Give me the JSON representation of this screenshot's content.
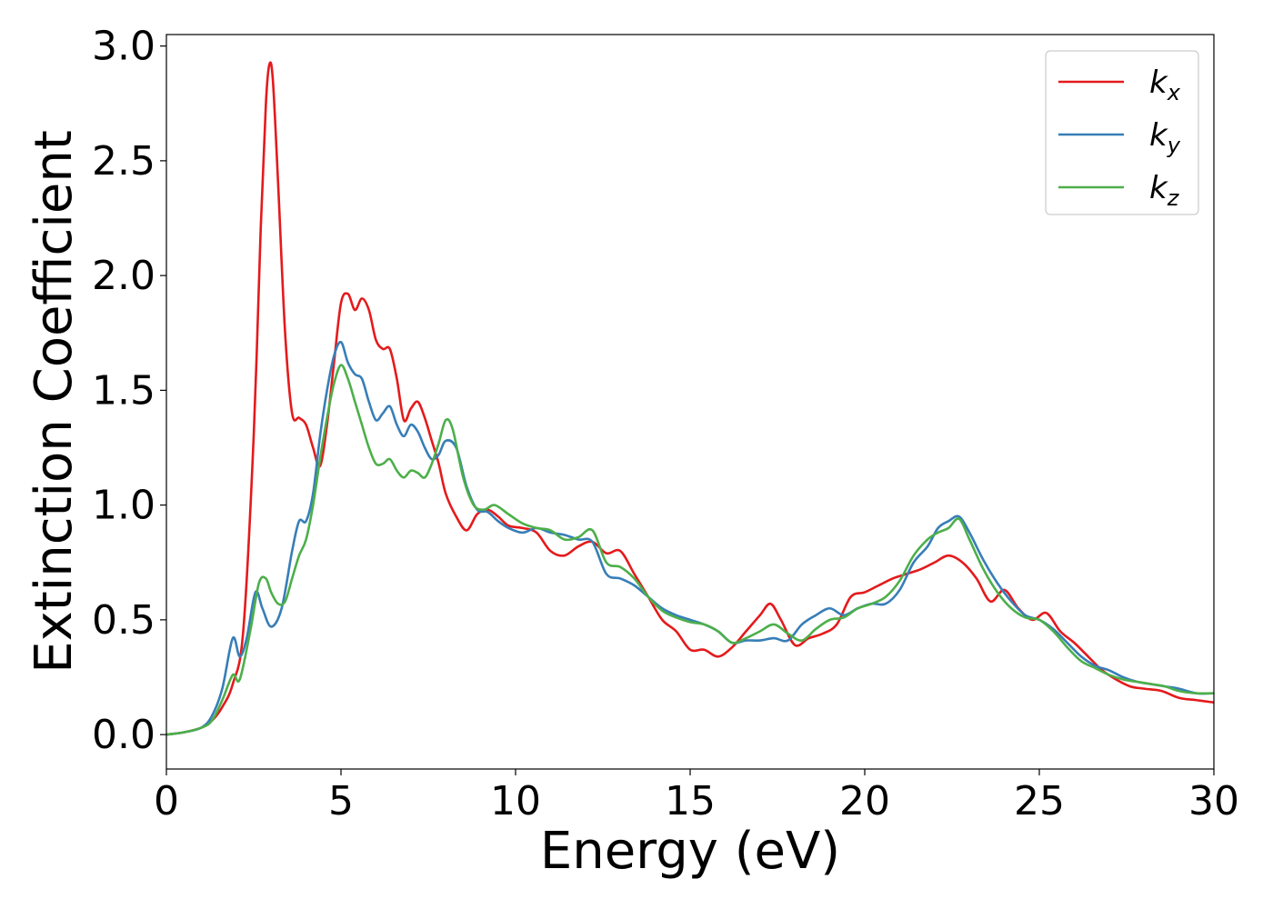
{
  "chart_data": {
    "type": "line",
    "title": "",
    "xlabel": "Energy (eV)",
    "ylabel": "Extinction Coefficient",
    "xlim": [
      0,
      30
    ],
    "ylim": [
      -0.15,
      3.05
    ],
    "xticks": [
      0,
      5,
      10,
      15,
      20,
      25,
      30
    ],
    "yticks": [
      0.0,
      0.5,
      1.0,
      1.5,
      2.0,
      2.5,
      3.0
    ],
    "xtick_labels": [
      "0",
      "5",
      "10",
      "15",
      "20",
      "25",
      "30"
    ],
    "ytick_labels": [
      "0.0",
      "0.5",
      "1.0",
      "1.5",
      "2.0",
      "2.5",
      "3.0"
    ],
    "grid": false,
    "legend_position": "top-right",
    "series": [
      {
        "name": "k_x",
        "label_main": "k",
        "label_sub": "x",
        "color": "#e41a1c",
        "x": [
          0,
          0.5,
          1.0,
          1.3,
          1.6,
          1.9,
          2.2,
          2.5,
          2.7,
          2.85,
          2.95,
          3.05,
          3.2,
          3.4,
          3.6,
          3.8,
          4.0,
          4.2,
          4.4,
          4.6,
          4.8,
          5.0,
          5.2,
          5.4,
          5.6,
          5.8,
          6.0,
          6.2,
          6.4,
          6.6,
          6.8,
          7.0,
          7.2,
          7.4,
          7.6,
          7.8,
          8.0,
          8.3,
          8.6,
          8.9,
          9.2,
          9.5,
          9.8,
          10.2,
          10.6,
          11.0,
          11.4,
          11.8,
          12.2,
          12.6,
          13.0,
          13.4,
          13.8,
          14.2,
          14.6,
          15.0,
          15.4,
          15.8,
          16.2,
          16.6,
          17.0,
          17.3,
          17.6,
          18.0,
          18.4,
          18.8,
          19.2,
          19.6,
          20.0,
          20.4,
          20.8,
          21.2,
          21.6,
          22.0,
          22.4,
          22.8,
          23.2,
          23.6,
          24.0,
          24.4,
          24.8,
          25.2,
          25.6,
          26.0,
          26.4,
          26.8,
          27.2,
          27.6,
          28.0,
          28.5,
          29.0,
          29.5,
          30.0
        ],
        "y": [
          0.0,
          0.01,
          0.03,
          0.06,
          0.12,
          0.22,
          0.45,
          1.3,
          2.2,
          2.75,
          2.92,
          2.85,
          2.4,
          1.75,
          1.4,
          1.38,
          1.35,
          1.25,
          1.17,
          1.35,
          1.62,
          1.88,
          1.92,
          1.85,
          1.9,
          1.85,
          1.72,
          1.68,
          1.68,
          1.55,
          1.37,
          1.42,
          1.45,
          1.38,
          1.28,
          1.18,
          1.05,
          0.95,
          0.89,
          0.96,
          0.98,
          0.95,
          0.91,
          0.9,
          0.88,
          0.8,
          0.78,
          0.82,
          0.84,
          0.79,
          0.8,
          0.7,
          0.6,
          0.5,
          0.45,
          0.37,
          0.37,
          0.34,
          0.38,
          0.45,
          0.52,
          0.57,
          0.5,
          0.39,
          0.42,
          0.44,
          0.48,
          0.6,
          0.62,
          0.65,
          0.68,
          0.7,
          0.72,
          0.75,
          0.78,
          0.75,
          0.68,
          0.58,
          0.63,
          0.55,
          0.5,
          0.53,
          0.45,
          0.4,
          0.34,
          0.28,
          0.24,
          0.21,
          0.2,
          0.19,
          0.16,
          0.15,
          0.14
        ]
      },
      {
        "name": "k_y",
        "label_main": "k",
        "label_sub": "y",
        "color": "#377eb8",
        "x": [
          0,
          0.5,
          1.0,
          1.3,
          1.6,
          1.9,
          2.1,
          2.3,
          2.55,
          2.75,
          3.0,
          3.3,
          3.6,
          3.8,
          4.0,
          4.2,
          4.4,
          4.6,
          4.8,
          5.0,
          5.2,
          5.4,
          5.6,
          5.8,
          6.0,
          6.2,
          6.4,
          6.6,
          6.8,
          7.0,
          7.2,
          7.4,
          7.6,
          7.8,
          8.0,
          8.3,
          8.6,
          8.9,
          9.2,
          9.5,
          9.8,
          10.2,
          10.6,
          11.0,
          11.4,
          11.8,
          12.2,
          12.6,
          13.0,
          13.4,
          13.8,
          14.2,
          14.6,
          15.0,
          15.4,
          15.8,
          16.2,
          16.6,
          17.0,
          17.4,
          17.8,
          18.2,
          18.6,
          19.0,
          19.4,
          19.8,
          20.2,
          20.6,
          21.0,
          21.4,
          21.8,
          22.1,
          22.4,
          22.7,
          23.0,
          23.4,
          23.8,
          24.2,
          24.6,
          25.0,
          25.4,
          25.8,
          26.2,
          26.6,
          27.0,
          27.4,
          27.8,
          28.2,
          28.6,
          29.0,
          29.5,
          30.0
        ],
        "y": [
          0.0,
          0.01,
          0.03,
          0.08,
          0.2,
          0.42,
          0.34,
          0.42,
          0.62,
          0.55,
          0.47,
          0.55,
          0.8,
          0.93,
          0.93,
          1.05,
          1.3,
          1.5,
          1.65,
          1.71,
          1.62,
          1.57,
          1.55,
          1.45,
          1.37,
          1.4,
          1.43,
          1.35,
          1.3,
          1.35,
          1.32,
          1.25,
          1.2,
          1.22,
          1.28,
          1.25,
          1.08,
          0.98,
          0.97,
          0.93,
          0.9,
          0.88,
          0.9,
          0.88,
          0.87,
          0.85,
          0.84,
          0.7,
          0.68,
          0.65,
          0.6,
          0.55,
          0.52,
          0.5,
          0.48,
          0.45,
          0.4,
          0.41,
          0.41,
          0.42,
          0.41,
          0.48,
          0.52,
          0.55,
          0.52,
          0.55,
          0.57,
          0.57,
          0.63,
          0.75,
          0.82,
          0.9,
          0.93,
          0.95,
          0.88,
          0.76,
          0.66,
          0.58,
          0.52,
          0.5,
          0.46,
          0.4,
          0.34,
          0.3,
          0.28,
          0.25,
          0.23,
          0.22,
          0.21,
          0.2,
          0.18,
          0.18
        ]
      },
      {
        "name": "k_z",
        "label_main": "k",
        "label_sub": "z",
        "color": "#4daf4a",
        "x": [
          0,
          0.5,
          1.0,
          1.3,
          1.6,
          1.9,
          2.1,
          2.4,
          2.65,
          2.85,
          3.0,
          3.2,
          3.4,
          3.6,
          3.8,
          4.0,
          4.2,
          4.4,
          4.6,
          4.8,
          5.0,
          5.2,
          5.4,
          5.6,
          5.8,
          6.0,
          6.2,
          6.4,
          6.6,
          6.8,
          7.0,
          7.2,
          7.4,
          7.6,
          7.8,
          8.0,
          8.2,
          8.5,
          8.8,
          9.1,
          9.4,
          9.8,
          10.2,
          10.6,
          11.0,
          11.4,
          11.8,
          12.2,
          12.6,
          13.0,
          13.4,
          13.8,
          14.2,
          14.6,
          15.0,
          15.4,
          15.8,
          16.2,
          16.6,
          17.0,
          17.4,
          17.8,
          18.2,
          18.6,
          19.0,
          19.4,
          19.8,
          20.2,
          20.6,
          21.0,
          21.4,
          21.8,
          22.1,
          22.4,
          22.7,
          23.0,
          23.4,
          23.8,
          24.2,
          24.6,
          25.0,
          25.4,
          25.8,
          26.2,
          26.6,
          27.0,
          27.4,
          27.8,
          28.2,
          28.6,
          29.0,
          29.5,
          30.0
        ],
        "y": [
          0.0,
          0.01,
          0.03,
          0.06,
          0.15,
          0.26,
          0.24,
          0.45,
          0.66,
          0.68,
          0.62,
          0.57,
          0.58,
          0.68,
          0.78,
          0.85,
          1.0,
          1.2,
          1.38,
          1.53,
          1.61,
          1.55,
          1.45,
          1.35,
          1.25,
          1.18,
          1.18,
          1.2,
          1.15,
          1.12,
          1.15,
          1.14,
          1.12,
          1.18,
          1.27,
          1.37,
          1.33,
          1.12,
          1.0,
          0.98,
          1.0,
          0.96,
          0.92,
          0.9,
          0.89,
          0.85,
          0.86,
          0.89,
          0.75,
          0.73,
          0.68,
          0.6,
          0.54,
          0.51,
          0.49,
          0.48,
          0.45,
          0.4,
          0.42,
          0.45,
          0.48,
          0.44,
          0.41,
          0.46,
          0.5,
          0.51,
          0.55,
          0.57,
          0.6,
          0.67,
          0.78,
          0.85,
          0.88,
          0.9,
          0.94,
          0.85,
          0.72,
          0.62,
          0.55,
          0.51,
          0.5,
          0.45,
          0.38,
          0.32,
          0.29,
          0.26,
          0.24,
          0.23,
          0.22,
          0.21,
          0.19,
          0.18,
          0.18
        ]
      }
    ]
  }
}
